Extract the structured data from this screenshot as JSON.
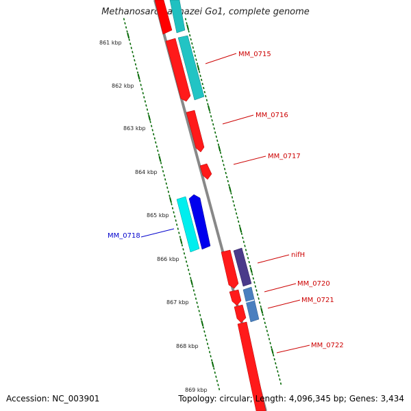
{
  "title": "Methanosarcina mazei Go1, complete genome",
  "footer": {
    "accession": "Accession: NC_003901",
    "stats": "Topology: circular; Length: 4,096,345 bp; Genes: 3,434"
  },
  "ruler_labels": [
    "861 kbp",
    "862 kbp",
    "863 kbp",
    "864 kbp",
    "865 kbp",
    "866 kbp",
    "867 kbp",
    "868 kbp",
    "869 kbp"
  ],
  "gene_labels": [
    {
      "id": "MM_0715",
      "color": "#cc0000"
    },
    {
      "id": "MM_0716",
      "color": "#cc0000"
    },
    {
      "id": "MM_0717",
      "color": "#cc0000"
    },
    {
      "id": "MM_0718",
      "color": "#0000cc"
    },
    {
      "id": "nifH",
      "color": "#cc0000"
    },
    {
      "id": "MM_0720",
      "color": "#cc0000"
    },
    {
      "id": "MM_0721",
      "color": "#cc0000"
    },
    {
      "id": "MM_0722",
      "color": "#cc0000"
    }
  ],
  "colors": {
    "cds_red": "#ff0000",
    "cds_blue": "#0000ee",
    "gene_cyan": "#00e0e0",
    "gene_teal": "#20c0c0",
    "gene_purple": "#4a3a8a",
    "gene_steel": "#4a7fbf",
    "backbone": "#888888",
    "tick_green": "#006600"
  }
}
